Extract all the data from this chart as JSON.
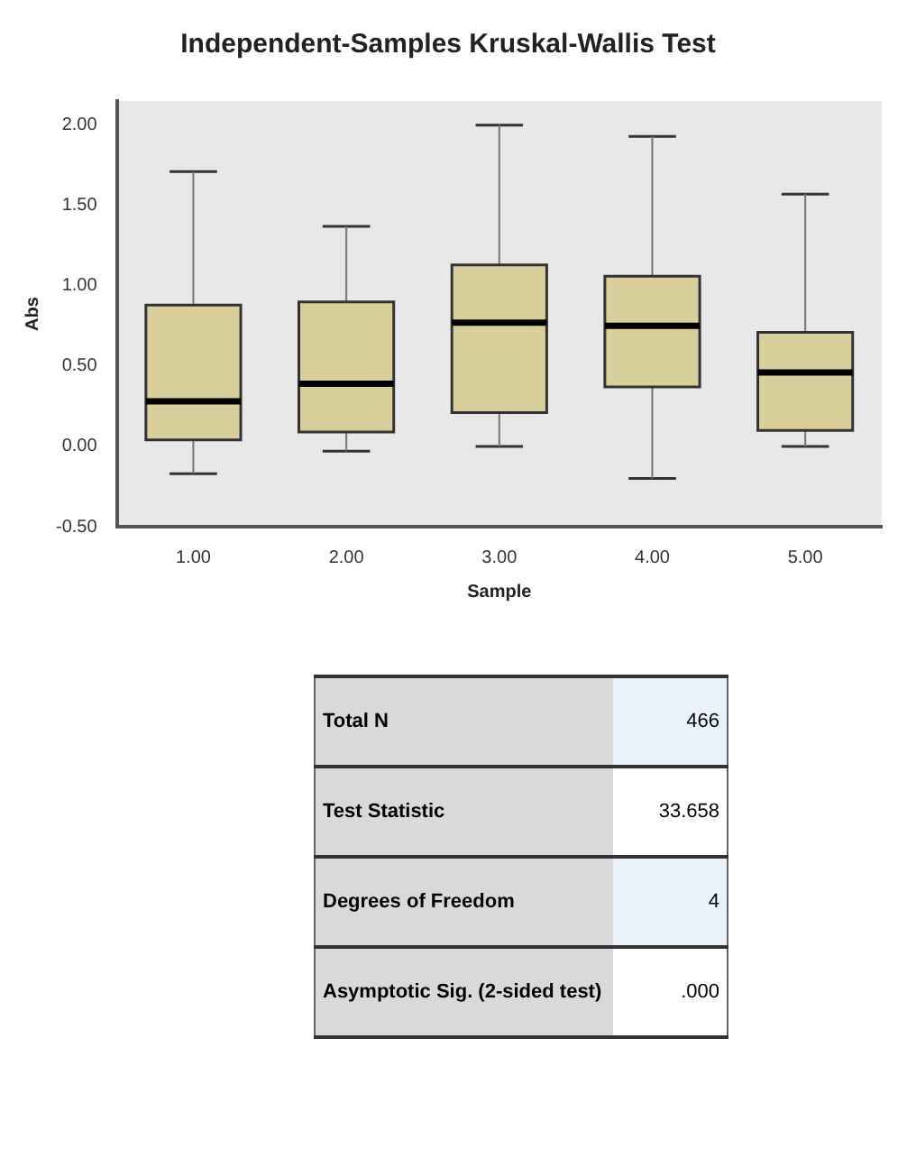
{
  "chart_data": {
    "type": "box",
    "title": "Independent-Samples Kruskal-Wallis Test",
    "xlabel": "Sample",
    "ylabel": "Abs",
    "categories": [
      "1.00",
      "2.00",
      "3.00",
      "4.00",
      "5.00"
    ],
    "color": "#d8cf9b",
    "boxes": [
      {
        "low": -0.17,
        "q1": 0.04,
        "median": 0.28,
        "q3": 0.88,
        "high": 1.71
      },
      {
        "low": -0.03,
        "q1": 0.09,
        "median": 0.39,
        "q3": 0.9,
        "high": 1.37
      },
      {
        "low": 0.0,
        "q1": 0.21,
        "median": 0.77,
        "q3": 1.13,
        "high": 2.0
      },
      {
        "low": -0.2,
        "q1": 0.37,
        "median": 0.75,
        "q3": 1.06,
        "high": 1.93
      },
      {
        "low": 0.0,
        "q1": 0.1,
        "median": 0.46,
        "q3": 0.71,
        "high": 1.57
      }
    ],
    "ylim": [
      -0.5,
      2.15
    ],
    "yticks": [
      {
        "value": -0.5,
        "label": "-0.50"
      },
      {
        "value": 0,
        "label": "0.00"
      },
      {
        "value": 0.5,
        "label": "0.50"
      },
      {
        "value": 1,
        "label": "1.00"
      },
      {
        "value": 1.5,
        "label": "1.50"
      },
      {
        "value": 2,
        "label": "2.00"
      }
    ],
    "grid": false,
    "legend": false,
    "annotations": [
      "Total N",
      "466",
      "Test Statistic",
      "33.658",
      "Degrees of Freedom",
      "4",
      "Asymptotic Sig. (2-sided test)",
      ".000"
    ]
  }
}
